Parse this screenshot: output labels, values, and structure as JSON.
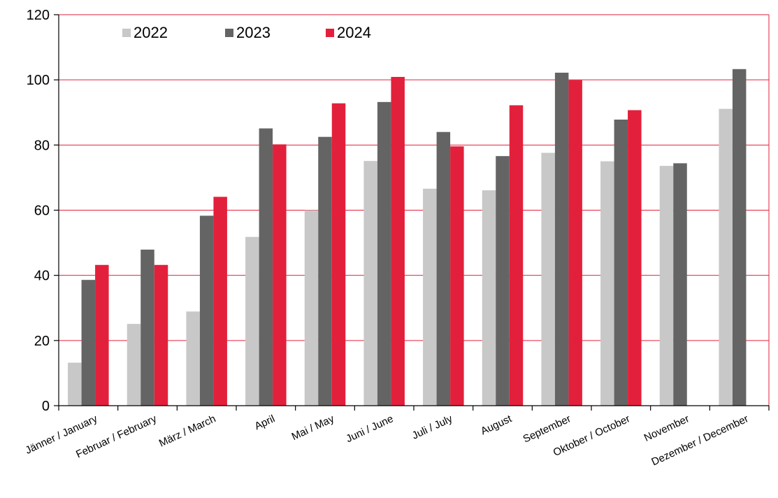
{
  "chart_data": {
    "type": "bar",
    "title": "",
    "xlabel": "",
    "ylabel": "",
    "ylim": [
      0,
      120
    ],
    "yticks": [
      0,
      20,
      40,
      60,
      80,
      100,
      120
    ],
    "grid": true,
    "legend_position": "top-left",
    "categories": [
      "Jänner / January",
      "Februar / February",
      "März / March",
      "April",
      "Mai / May",
      "Juni / June",
      "Juli / July",
      "August",
      "September",
      "Oktober / October",
      "November",
      "Dezember / December"
    ],
    "series": [
      {
        "name": "2022",
        "color": "#c8c8c8",
        "values": [
          13.2,
          25.1,
          28.9,
          51.8,
          60.0,
          75.1,
          66.6,
          66.1,
          77.6,
          75.0,
          73.6,
          91.1
        ]
      },
      {
        "name": "2023",
        "color": "#646464",
        "values": [
          38.6,
          47.9,
          58.3,
          85.1,
          82.5,
          93.2,
          84.0,
          76.6,
          102.2,
          87.8,
          74.4,
          103.3
        ]
      },
      {
        "name": "2024",
        "color": "#e3203b",
        "values": [
          43.2,
          43.2,
          64.1,
          80.2,
          92.8,
          100.9,
          79.6,
          92.2,
          99.9,
          90.7,
          null,
          null
        ]
      }
    ],
    "colors": {
      "gridline": "#e3203b",
      "axis": "#000000"
    }
  }
}
